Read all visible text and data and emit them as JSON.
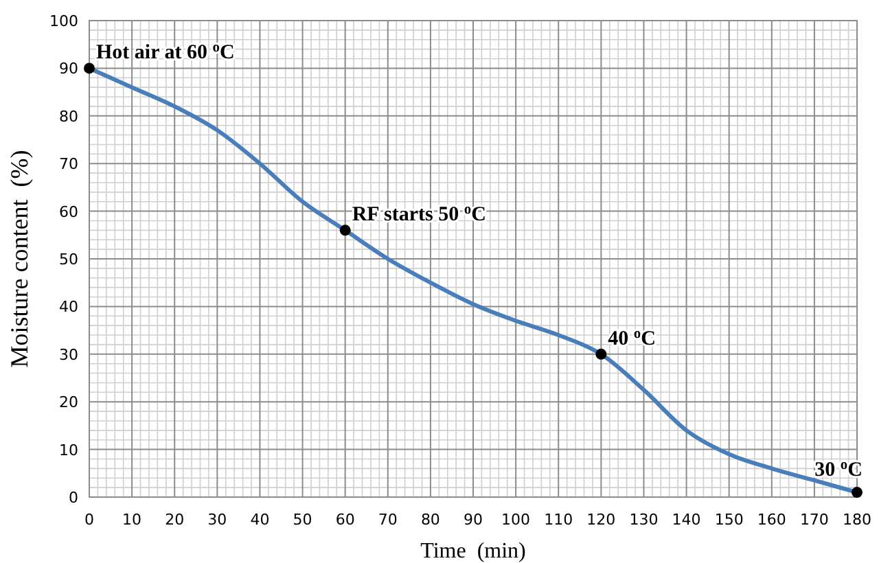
{
  "chart_data": {
    "type": "line",
    "xlabel": "Time  (min)",
    "ylabel": "Moisture content  (%)",
    "xlim": [
      0,
      180
    ],
    "xticks": [
      0,
      10,
      20,
      30,
      40,
      50,
      60,
      70,
      80,
      90,
      100,
      110,
      120,
      130,
      140,
      150,
      160,
      170,
      180
    ],
    "ylim": [
      0,
      100
    ],
    "yticks": [
      0,
      10,
      20,
      30,
      40,
      50,
      60,
      70,
      80,
      90,
      100
    ],
    "grid": true,
    "series": [
      {
        "color": "#4a7ebb",
        "marker": "none",
        "x": [
          0,
          10,
          20,
          30,
          40,
          50,
          60,
          70,
          80,
          90,
          100,
          110,
          120,
          130,
          140,
          150,
          160,
          170,
          180
        ],
        "values": [
          90,
          86,
          82,
          77,
          70,
          62,
          56,
          50,
          45,
          40.5,
          37,
          34,
          30,
          22.5,
          14,
          9,
          6,
          3.5,
          1
        ]
      },
      {
        "type": "scatter",
        "color": "#000000",
        "marker": "circle",
        "x": [
          0,
          60,
          120,
          180
        ],
        "values": [
          90,
          56,
          30,
          1
        ]
      }
    ],
    "annotations": [
      {
        "text": "Hot air at 60 $^{o}$C",
        "x": 0,
        "y": 90
      },
      {
        "text": "RF starts 50 $^{o}$C",
        "x": 60,
        "y": 56
      },
      {
        "text": "40 $^{o}$C",
        "x": 120,
        "y": 30
      },
      {
        "text": "30 $^{o}$C",
        "x": 180,
        "y": 1
      }
    ]
  }
}
